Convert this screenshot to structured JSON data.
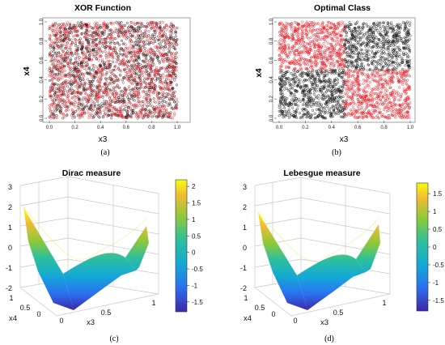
{
  "chart_data": [
    {
      "type": "scatter",
      "title": "XOR Function",
      "xlabel": "x3",
      "ylabel": "x4",
      "xlim": [
        0,
        1
      ],
      "ylim": [
        0,
        1
      ],
      "xticks": [
        "0.0",
        "0.2",
        "0.4",
        "0.6",
        "0.8",
        "1.0"
      ],
      "yticks": [
        "0.0",
        "0.2",
        "0.4",
        "0.6",
        "0.8",
        "1.0"
      ],
      "series": [
        {
          "color": "#e8141e",
          "description_values": "points uniformly spread over [0,1]x[0,1], mixed with black"
        },
        {
          "color": "#111111",
          "description_values": "points uniformly spread over [0,1]x[0,1], mixed with red"
        }
      ],
      "caption": "(a)"
    },
    {
      "type": "scatter",
      "title": "Optimal Class",
      "xlabel": "x3",
      "ylabel": "x4",
      "xlim": [
        0,
        1
      ],
      "ylim": [
        0,
        1
      ],
      "xticks": [
        "0.0",
        "0.2",
        "0.4",
        "0.6",
        "0.8",
        "1.0"
      ],
      "yticks": [
        "0.0",
        "0.2",
        "0.4",
        "0.6",
        "0.8",
        "1.0"
      ],
      "quadrants": [
        {
          "x": [
            0,
            0.5
          ],
          "y": [
            0.5,
            1
          ],
          "color": "#e8141e"
        },
        {
          "x": [
            0.5,
            1
          ],
          "y": [
            0.5,
            1
          ],
          "color": "#111111"
        },
        {
          "x": [
            0,
            0.5
          ],
          "y": [
            0,
            0.5
          ],
          "color": "#111111"
        },
        {
          "x": [
            0.5,
            1
          ],
          "y": [
            0,
            0.5
          ],
          "color": "#e8141e"
        }
      ],
      "caption": "(b)"
    },
    {
      "type": "surface",
      "title": "Dirac measure",
      "xlabel": "x3",
      "ylabel": "x4",
      "zlim": [
        -2,
        3
      ],
      "zticks": [
        "3",
        "2",
        "1",
        "0",
        "-1",
        "-2"
      ],
      "xticks": [
        "0",
        "0.5",
        "1"
      ],
      "yticks": [
        "1",
        "0.5",
        "0"
      ],
      "colorbar": {
        "range": [
          -1.8,
          2.2
        ],
        "ticks": [
          "2",
          "1.5",
          "1",
          "0.5",
          "0",
          "-0.5",
          "-1",
          "-1.5"
        ]
      },
      "caption": "(c)"
    },
    {
      "type": "surface",
      "title": "Lebesgue measure",
      "xlabel": "x3",
      "ylabel": "x4",
      "zlim": [
        -2,
        3
      ],
      "zticks": [
        "3",
        "2",
        "1",
        "0",
        "-1",
        "-2"
      ],
      "xticks": [
        "0",
        "0.5",
        "1"
      ],
      "yticks": [
        "1",
        "0.5",
        "0"
      ],
      "colorbar": {
        "range": [
          -1.8,
          1.8
        ],
        "ticks": [
          "1.5",
          "1",
          "0.5",
          "0",
          "-0.5",
          "-1",
          "-1.5"
        ]
      },
      "caption": "(d)"
    }
  ]
}
